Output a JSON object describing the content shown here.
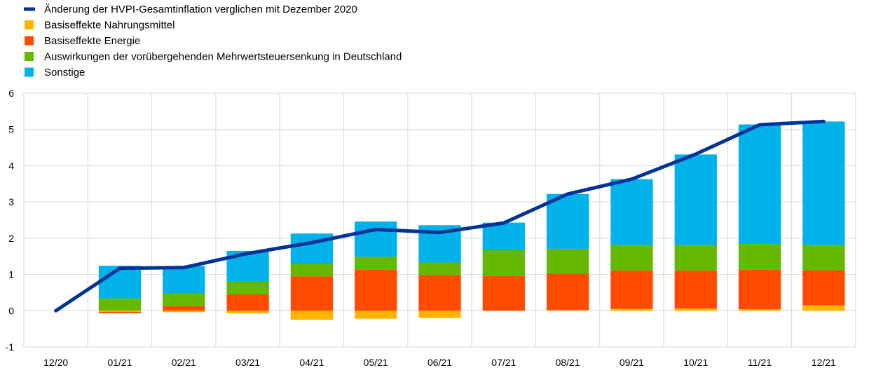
{
  "chart_data": {
    "type": "bar",
    "stacked": true,
    "title": "",
    "xlabel": "",
    "ylabel": "",
    "ylim": [
      -1,
      6
    ],
    "yticks": [
      "-1",
      "0",
      "1",
      "2",
      "3",
      "4",
      "5",
      "6"
    ],
    "grid": true,
    "legend_position": "top-left",
    "categories": [
      "12/20",
      "01/21",
      "02/21",
      "03/21",
      "04/21",
      "05/21",
      "06/21",
      "07/21",
      "08/21",
      "09/21",
      "10/21",
      "11/21",
      "12/21"
    ],
    "series": [
      {
        "name": "Basiseffekte Nahrungsmittel",
        "color": "#ffb400",
        "values": [
          0,
          -0.03,
          -0.04,
          -0.07,
          -0.25,
          -0.22,
          -0.2,
          0.0,
          0.02,
          0.05,
          0.06,
          0.04,
          0.15
        ]
      },
      {
        "name": "Basiseffekte Energie",
        "color": "#ff4b00",
        "values": [
          0,
          -0.04,
          0.13,
          0.45,
          0.95,
          1.13,
          0.98,
          0.96,
          1.0,
          1.06,
          1.05,
          1.09,
          0.97
        ]
      },
      {
        "name": "Auswirkungen der vorübergehenden Mehrwertsteuersenkung in Deutschland",
        "color": "#65b800",
        "values": [
          0,
          0.34,
          0.35,
          0.35,
          0.35,
          0.36,
          0.35,
          0.71,
          0.69,
          0.7,
          0.7,
          0.71,
          0.69
        ]
      },
      {
        "name": "Sonstige",
        "color": "#00b1ea",
        "values": [
          0,
          0.9,
          0.75,
          0.85,
          0.83,
          0.97,
          1.03,
          0.76,
          1.51,
          1.82,
          2.5,
          3.3,
          3.41
        ]
      }
    ],
    "line": {
      "name": "Änderung der HVPI-Gesamtinflation verglichen mit Dezember 2020",
      "color": "#003299",
      "values": [
        0,
        1.17,
        1.19,
        1.58,
        1.88,
        2.24,
        2.16,
        2.42,
        3.22,
        3.63,
        4.32,
        5.13,
        5.22
      ]
    }
  }
}
